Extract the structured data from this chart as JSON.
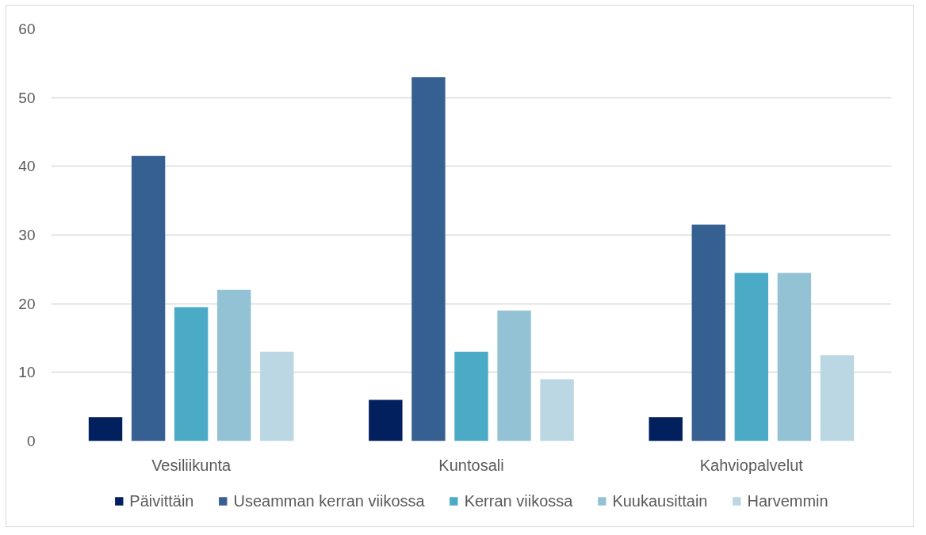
{
  "chart_data": {
    "type": "bar",
    "categories": [
      "Vesiliikunta",
      "Kuntosali",
      "Kahviopalvelut"
    ],
    "series": [
      {
        "name": "Päivittäin",
        "color": "#02205e",
        "values": [
          3.5,
          6,
          3.5
        ]
      },
      {
        "name": "Useamman kerran viikossa",
        "color": "#366092",
        "values": [
          41.5,
          53,
          31.5
        ]
      },
      {
        "name": "Kerran viikossa",
        "color": "#4babc7",
        "values": [
          19.5,
          13,
          24.5
        ]
      },
      {
        "name": "Kuukausittain",
        "color": "#93c2d4",
        "values": [
          22,
          19,
          24.5
        ]
      },
      {
        "name": "Harvemmin",
        "color": "#bbd7e3",
        "values": [
          13,
          9,
          12.5
        ]
      }
    ],
    "ylim": [
      0,
      60
    ],
    "yticks": [
      0,
      10,
      20,
      30,
      40,
      50,
      60
    ],
    "grid": "y",
    "legend": "bottom"
  }
}
